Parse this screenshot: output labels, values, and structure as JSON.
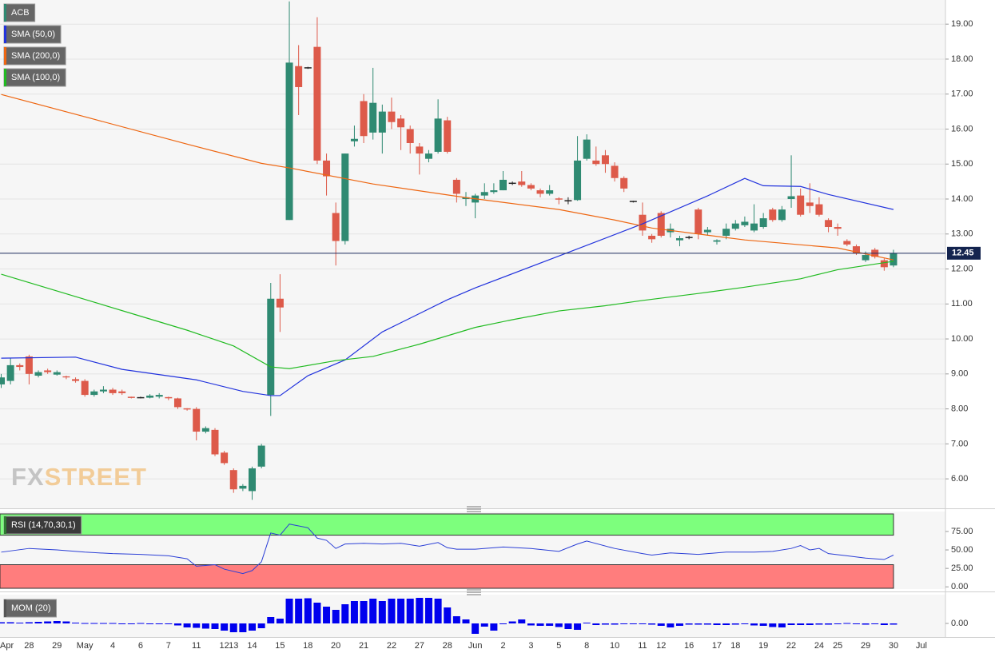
{
  "chart_data": [
    {
      "type": "candlestick",
      "categories": [
        "Apr",
        null,
        null,
        "28",
        null,
        null,
        "29",
        null,
        null,
        "May",
        null,
        null,
        "4",
        null,
        null,
        "6",
        null,
        null,
        "7",
        null,
        null,
        "11",
        null,
        null,
        "12",
        "13",
        null,
        "14",
        null,
        null,
        "15",
        null,
        null,
        "18",
        null,
        null,
        "20",
        null,
        null,
        "21",
        null,
        null,
        "22",
        null,
        null,
        "27",
        null,
        null,
        "28",
        null,
        null,
        "Jun",
        null,
        null,
        "2",
        null,
        null,
        "3",
        null,
        null,
        "5",
        null,
        null,
        "8",
        null,
        null,
        "10",
        null,
        null,
        "11",
        null,
        "12",
        null,
        null,
        "16",
        null,
        null,
        "17",
        null,
        "18",
        null,
        null,
        "19",
        null,
        null,
        "22",
        null,
        null,
        "24",
        null,
        "25",
        null,
        null,
        "29",
        null,
        null,
        "30",
        null,
        null,
        "Jul"
      ],
      "series": [
        {
          "name": "ACB",
          "up_color": "#2f8a72",
          "down_color": "#dd5a4a",
          "flat_color": "#222222",
          "open": [
            8.7,
            8.8,
            9.25,
            9.5,
            8.95,
            9.1,
            8.98,
            8.93,
            8.85,
            8.8,
            8.4,
            8.5,
            8.55,
            8.5,
            8.33,
            8.32,
            8.32,
            8.35,
            8.32,
            8.3,
            8.0,
            8.0,
            7.35,
            7.4,
            6.75,
            6.25,
            5.72,
            5.65,
            6.35,
            8.4,
            11.15,
            13.4,
            17.8,
            17.75,
            18.35,
            15.1,
            13.6,
            12.8,
            15.65,
            16.8,
            15.9,
            15.9,
            16.5,
            16.3,
            16.0,
            15.5,
            15.15,
            15.35,
            16.25,
            14.55,
            14.0,
            13.9,
            14.1,
            14.2,
            14.25,
            14.45,
            14.5,
            14.4,
            14.25,
            14.15,
            14.0,
            13.95,
            13.97,
            15.15,
            15.1,
            15.25,
            14.95,
            14.6,
            13.93,
            13.55,
            12.95,
            13.6,
            13.05,
            12.82,
            12.9,
            13.7,
            13.05,
            12.78,
            12.95,
            13.15,
            13.25,
            13.1,
            13.2,
            13.7,
            13.4,
            14.0,
            14.1,
            13.9,
            13.85,
            13.4,
            13.2,
            12.8,
            12.65,
            12.25,
            12.55,
            12.25,
            12.1,
            null,
            null,
            null
          ],
          "high": [
            9.0,
            9.45,
            9.3,
            9.55,
            9.1,
            9.15,
            9.1,
            8.95,
            8.9,
            8.85,
            8.55,
            8.65,
            8.6,
            8.55,
            8.35,
            8.35,
            8.42,
            8.45,
            8.35,
            8.32,
            8.02,
            8.05,
            7.5,
            7.45,
            6.8,
            6.3,
            5.85,
            6.35,
            7.0,
            11.6,
            11.85,
            19.65,
            18.4,
            17.78,
            19.2,
            15.3,
            13.9,
            15.3,
            16.1,
            17.0,
            17.75,
            16.7,
            16.9,
            16.4,
            16.1,
            15.6,
            15.4,
            16.85,
            16.35,
            14.6,
            14.2,
            14.15,
            14.45,
            14.45,
            14.8,
            14.5,
            14.8,
            14.45,
            14.3,
            14.4,
            14.05,
            14.05,
            15.8,
            15.85,
            15.5,
            15.4,
            15.05,
            14.65,
            13.95,
            13.9,
            13.0,
            13.65,
            13.3,
            12.95,
            12.95,
            13.75,
            13.2,
            12.85,
            13.3,
            13.4,
            13.5,
            13.85,
            13.6,
            13.75,
            13.8,
            15.25,
            14.3,
            14.45,
            14.05,
            13.45,
            13.3,
            12.85,
            12.7,
            12.5,
            12.6,
            12.3,
            12.55,
            null,
            null,
            null
          ],
          "low": [
            8.6,
            8.7,
            9.1,
            8.7,
            8.9,
            9.0,
            8.95,
            8.85,
            8.75,
            8.35,
            8.35,
            8.45,
            8.4,
            8.4,
            8.3,
            8.3,
            8.3,
            8.3,
            8.25,
            8.0,
            7.95,
            7.1,
            7.3,
            6.65,
            6.4,
            5.6,
            5.65,
            5.4,
            6.3,
            7.8,
            10.2,
            13.4,
            16.4,
            17.72,
            15.0,
            14.1,
            12.1,
            12.7,
            15.5,
            15.6,
            15.7,
            15.3,
            16.0,
            15.4,
            15.3,
            14.7,
            15.05,
            15.3,
            15.3,
            13.9,
            13.8,
            13.45,
            14.0,
            14.15,
            14.25,
            14.4,
            14.35,
            14.25,
            14.05,
            14.1,
            13.85,
            13.85,
            13.95,
            15.1,
            14.95,
            14.75,
            14.5,
            14.2,
            13.9,
            12.95,
            12.75,
            12.9,
            12.9,
            12.65,
            12.85,
            12.85,
            12.95,
            12.7,
            12.85,
            13.1,
            13.2,
            13.05,
            13.15,
            13.35,
            13.35,
            13.75,
            13.5,
            13.6,
            13.5,
            13.05,
            12.95,
            12.65,
            12.4,
            12.2,
            12.3,
            11.95,
            12.05,
            null,
            null,
            null
          ],
          "close": [
            8.9,
            9.25,
            9.2,
            9.0,
            9.05,
            9.05,
            9.05,
            8.9,
            8.8,
            8.4,
            8.5,
            8.55,
            8.45,
            8.45,
            8.32,
            8.32,
            8.38,
            8.4,
            8.3,
            8.05,
            7.98,
            7.35,
            7.45,
            6.7,
            6.45,
            5.7,
            5.8,
            6.3,
            6.95,
            11.15,
            10.9,
            17.9,
            17.2,
            17.75,
            15.1,
            14.65,
            12.8,
            15.3,
            15.72,
            15.8,
            16.75,
            16.5,
            16.2,
            16.05,
            15.6,
            15.3,
            15.3,
            16.3,
            15.35,
            14.15,
            14.05,
            14.1,
            14.2,
            14.25,
            14.55,
            14.45,
            14.4,
            14.3,
            14.15,
            14.25,
            13.98,
            13.95,
            15.1,
            15.7,
            15.0,
            15.0,
            14.6,
            14.3,
            13.93,
            13.1,
            12.85,
            12.95,
            13.15,
            12.88,
            12.9,
            13.0,
            13.12,
            12.82,
            13.15,
            13.3,
            13.35,
            13.3,
            13.45,
            13.4,
            13.7,
            14.08,
            13.55,
            13.8,
            13.55,
            13.2,
            13.15,
            12.7,
            12.45,
            12.4,
            12.35,
            12.05,
            12.45,
            null,
            null,
            null
          ]
        }
      ],
      "overlays": [
        {
          "name": "SMA (50,0)",
          "color": "#2233dd",
          "x": [
            0,
            8,
            13,
            21,
            26,
            29,
            30,
            33,
            37,
            41,
            48,
            51,
            60,
            69,
            76,
            80,
            82,
            86,
            89,
            96
          ],
          "values": [
            9.45,
            9.48,
            9.13,
            8.83,
            8.5,
            8.38,
            8.38,
            8.95,
            9.4,
            10.2,
            11.12,
            11.46,
            12.37,
            13.29,
            14.09,
            14.59,
            14.38,
            14.36,
            14.13,
            13.7
          ]
        },
        {
          "name": "SMA (200,0)",
          "color": "#ee6611",
          "x": [
            0,
            10,
            20,
            28,
            31,
            40,
            50,
            60,
            66,
            70,
            80,
            90,
            96
          ],
          "values": [
            16.99,
            16.28,
            15.57,
            15.02,
            14.89,
            14.43,
            14.04,
            13.7,
            13.4,
            13.17,
            12.83,
            12.6,
            12.26
          ]
        },
        {
          "name": "SMA (100,0)",
          "color": "#22bb22",
          "x": [
            0,
            5,
            10,
            15,
            20,
            25,
            29,
            31,
            36,
            40,
            45,
            51,
            55,
            60,
            65,
            69,
            75,
            80,
            86,
            90,
            96
          ],
          "values": [
            11.85,
            11.45,
            11.05,
            10.65,
            10.25,
            9.8,
            9.2,
            9.15,
            9.38,
            9.5,
            9.85,
            10.33,
            10.55,
            10.8,
            10.95,
            11.1,
            11.3,
            11.48,
            11.72,
            11.98,
            12.22
          ]
        }
      ],
      "last_price": 12.45,
      "ylim": [
        5.18,
        19.69
      ],
      "yticks": [
        {
          "value": 6,
          "label": "6.00"
        },
        {
          "value": 7,
          "label": "7.00"
        },
        {
          "value": 8,
          "label": "8.00"
        },
        {
          "value": 9,
          "label": "9.00"
        },
        {
          "value": 10,
          "label": "10.00"
        },
        {
          "value": 11,
          "label": "11.00"
        },
        {
          "value": 12,
          "label": "12.00"
        },
        {
          "value": 13,
          "label": "13.00"
        },
        {
          "value": 14,
          "label": "14.00"
        },
        {
          "value": 15,
          "label": "15.00"
        },
        {
          "value": 16,
          "label": "16.00"
        },
        {
          "value": 17,
          "label": "17.00"
        },
        {
          "value": 18,
          "label": "18.00"
        },
        {
          "value": 19,
          "label": "19.00"
        }
      ],
      "grid": true,
      "watermark": {
        "prefix": "FX",
        "suffix": "STREET"
      }
    },
    {
      "type": "line",
      "title": "RSI (14,70,30,1)",
      "color": "#2b3fd6",
      "overbought": 70,
      "oversold": 30,
      "x": [
        0,
        3,
        6,
        9,
        12,
        15,
        18,
        20,
        21,
        23,
        24,
        26,
        27,
        28,
        29,
        30,
        31,
        33,
        34,
        35,
        36,
        37,
        39,
        41,
        43,
        45,
        47,
        48,
        49,
        51,
        54,
        57,
        60,
        62,
        63,
        66,
        69,
        70,
        72,
        75,
        78,
        81,
        83,
        85,
        86,
        87,
        88,
        89,
        91,
        93,
        95,
        96
      ],
      "values": [
        47,
        52,
        50,
        47,
        45,
        44,
        42,
        38,
        28,
        30,
        24,
        18,
        22,
        34,
        73,
        70,
        85,
        80,
        66,
        63,
        52,
        58,
        59,
        58,
        59,
        55,
        60,
        53,
        51,
        51,
        54,
        52,
        48,
        58,
        62,
        52,
        45,
        43,
        46,
        44,
        47,
        47,
        48,
        52,
        56,
        50,
        52,
        45,
        42,
        39,
        37,
        43
      ],
      "ylim": [
        -3,
        102
      ],
      "yticks": [
        {
          "value": 0,
          "label": "0.00"
        },
        {
          "value": 25,
          "label": "25.00"
        },
        {
          "value": 50,
          "label": "50.00"
        },
        {
          "value": 75,
          "label": "75.00"
        }
      ]
    },
    {
      "type": "bar",
      "title": "MOM (20)",
      "color": "#0000ee",
      "values": [
        0.3,
        0.3,
        0.2,
        0.3,
        0.4,
        0.5,
        0.6,
        0.5,
        0.2,
        0.1,
        0.1,
        0.1,
        0.1,
        -0.1,
        -0.1,
        0.1,
        -0.1,
        -0.1,
        -0.2,
        -0.5,
        -1.0,
        -1.1,
        -1.3,
        -1.4,
        -1.8,
        -2.2,
        -2.2,
        -1.8,
        -1.2,
        1.6,
        1.2,
        6.2,
        6.2,
        6.3,
        5.2,
        4.2,
        3.4,
        4.8,
        5.6,
        5.6,
        6.2,
        5.6,
        6.2,
        6.2,
        6.2,
        6.4,
        6.4,
        6.2,
        4.0,
        1.8,
        1.0,
        -2.6,
        -0.8,
        -1.8,
        -0.2,
        0.5,
        1.0,
        -0.5,
        -0.6,
        -0.6,
        -0.9,
        -1.4,
        -1.6,
        0.2,
        -0.4,
        -0.3,
        -0.3,
        -0.2,
        -0.2,
        -0.2,
        -0.3,
        -0.6,
        -1.0,
        -0.6,
        -0.3,
        -0.3,
        -0.3,
        -0.4,
        -0.4,
        -0.3,
        -0.2,
        -0.5,
        -0.6,
        -0.9,
        -1.0,
        -0.4,
        -0.4,
        -0.4,
        -0.3,
        -0.3,
        -0.2,
        0.1,
        -0.2,
        -0.3,
        -0.2,
        -0.4,
        -0.3
      ],
      "ylim": [
        -3,
        7
      ],
      "yticks": [
        {
          "value": 0,
          "label": "0.00"
        }
      ]
    }
  ]
}
